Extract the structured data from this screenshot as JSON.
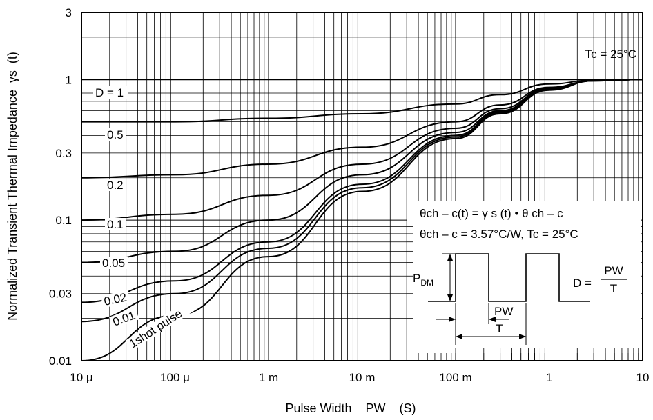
{
  "chart_data": {
    "type": "line",
    "x_scale": "log",
    "y_scale": "log",
    "xlim": [
      "1e-5",
      10
    ],
    "ylim": [
      0.01,
      3
    ],
    "xlabel": "Pulse Width    PW    (S)",
    "ylabel": "Normalized Transient Thermal Impedance  γs  (t)",
    "x_ticks": [
      {
        "value": 1e-05,
        "label": "10 μ"
      },
      {
        "value": 0.0001,
        "label": "100 μ"
      },
      {
        "value": 0.001,
        "label": "1 m"
      },
      {
        "value": 0.01,
        "label": "10 m"
      },
      {
        "value": 0.1,
        "label": "100 m"
      },
      {
        "value": 1,
        "label": "1"
      },
      {
        "value": 10,
        "label": "10"
      }
    ],
    "y_ticks": [
      {
        "value": 0.01,
        "label": "0.01"
      },
      {
        "value": 0.03,
        "label": "0.03"
      },
      {
        "value": 0.1,
        "label": "0.1"
      },
      {
        "value": 0.3,
        "label": "0.3"
      },
      {
        "value": 1,
        "label": "1"
      },
      {
        "value": 3,
        "label": "3"
      }
    ],
    "grid": true,
    "series": [
      {
        "name": "D = 1",
        "points": [
          [
            1e-05,
            1
          ],
          [
            10,
            1
          ]
        ]
      },
      {
        "name": "0.5",
        "points": [
          [
            1e-05,
            0.5
          ],
          [
            0.0001,
            0.5
          ],
          [
            0.001,
            0.53
          ],
          [
            0.01,
            0.57
          ],
          [
            0.1,
            0.67
          ],
          [
            0.3,
            0.78
          ],
          [
            1,
            0.93
          ],
          [
            3,
            0.99
          ],
          [
            10,
            1
          ]
        ]
      },
      {
        "name": "0.2",
        "points": [
          [
            1e-05,
            0.2
          ],
          [
            0.0001,
            0.21
          ],
          [
            0.001,
            0.25
          ],
          [
            0.01,
            0.33
          ],
          [
            0.1,
            0.5
          ],
          [
            0.3,
            0.66
          ],
          [
            1,
            0.88
          ],
          [
            3,
            0.98
          ],
          [
            10,
            1
          ]
        ]
      },
      {
        "name": "0.1",
        "points": [
          [
            1e-05,
            0.1
          ],
          [
            0.0001,
            0.11
          ],
          [
            0.001,
            0.15
          ],
          [
            0.01,
            0.25
          ],
          [
            0.1,
            0.45
          ],
          [
            0.3,
            0.62
          ],
          [
            1,
            0.87
          ],
          [
            3,
            0.98
          ],
          [
            10,
            1
          ]
        ]
      },
      {
        "name": "0.05",
        "points": [
          [
            1e-05,
            0.05
          ],
          [
            0.0001,
            0.06
          ],
          [
            0.001,
            0.1
          ],
          [
            0.01,
            0.21
          ],
          [
            0.1,
            0.42
          ],
          [
            0.3,
            0.6
          ],
          [
            1,
            0.86
          ],
          [
            3,
            0.98
          ],
          [
            10,
            1
          ]
        ]
      },
      {
        "name": "0.02",
        "points": [
          [
            1e-05,
            0.026
          ],
          [
            0.0001,
            0.037
          ],
          [
            0.001,
            0.07
          ],
          [
            0.01,
            0.18
          ],
          [
            0.1,
            0.4
          ],
          [
            0.3,
            0.59
          ],
          [
            1,
            0.85
          ],
          [
            3,
            0.98
          ],
          [
            10,
            1
          ]
        ]
      },
      {
        "name": "0.01",
        "points": [
          [
            1e-05,
            0.019
          ],
          [
            0.0001,
            0.03
          ],
          [
            0.001,
            0.063
          ],
          [
            0.01,
            0.17
          ],
          [
            0.1,
            0.39
          ],
          [
            0.3,
            0.58
          ],
          [
            1,
            0.85
          ],
          [
            3,
            0.98
          ],
          [
            10,
            1
          ]
        ]
      },
      {
        "name": "1shot pulse",
        "points": [
          [
            1e-05,
            0.01
          ],
          [
            0.0001,
            0.021
          ],
          [
            0.001,
            0.055
          ],
          [
            0.01,
            0.16
          ],
          [
            0.1,
            0.38
          ],
          [
            0.3,
            0.57
          ],
          [
            1,
            0.84
          ],
          [
            3,
            0.98
          ],
          [
            10,
            1
          ]
        ]
      }
    ],
    "annotations": {
      "condition": "Tc = 25°C",
      "formula_1": "θch – c(t) = γ s (t) • θ ch – c",
      "formula_2": "θch – c = 3.57°C/W, Tc = 25°C",
      "pulse_amplitude": "P",
      "pulse_amplitude_sub": "DM",
      "pulse_width": "PW",
      "period": "T",
      "duty_lhs": "D = ",
      "duty_numerator": "PW",
      "duty_denominator": "T"
    }
  }
}
